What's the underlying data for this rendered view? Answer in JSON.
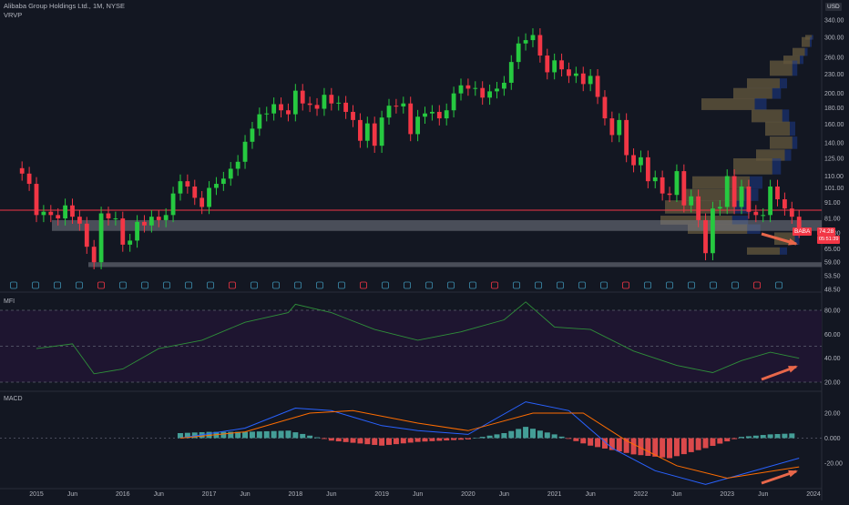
{
  "header": {
    "symbol_line": "Alibaba Group Holdings Ltd., 1M, NYSE",
    "indicator": "VRVP"
  },
  "currency": "USD",
  "ticker_tag": {
    "symbol": "BABA",
    "price": "74.28",
    "countdown": "05:51:39"
  },
  "price_axis": [
    "340.00",
    "300.00",
    "260.00",
    "230.00",
    "200.00",
    "180.00",
    "160.00",
    "140.00",
    "125.00",
    "110.00",
    "101.00",
    "91.00",
    "81.00",
    "73.00",
    "65.00",
    "59.00",
    "53.50",
    "48.50"
  ],
  "mfi_axis": [
    "80.00",
    "60.00",
    "40.00",
    "20.00"
  ],
  "macd_axis": [
    "20.00",
    "0.000",
    "-20.00"
  ],
  "time_axis": [
    "2015",
    "Jun",
    "2016",
    "Jun",
    "2017",
    "Jun",
    "2018",
    "Jun",
    "2019",
    "Jun",
    "2020",
    "Jun",
    "2021",
    "Jun",
    "2022",
    "Jun",
    "2023",
    "Jun",
    "2024"
  ],
  "pane_labels": {
    "mfi": "MFI",
    "macd": "MACD"
  },
  "colors": {
    "up": "#26c940",
    "down": "#f23645",
    "bg": "#131722",
    "grid": "#1e222d",
    "mfi_line": "#2f8f3a",
    "macd_line": "#2962ff",
    "signal_line": "#ff6d00",
    "hist_up": "#4db6ac",
    "hist_down": "#ff5252",
    "arrow": "#e8674a"
  },
  "chart_data": {
    "type": "candlestick",
    "title": "Alibaba Group Holdings Ltd., 1M, NYSE",
    "interval": "1M",
    "price_scale": "log",
    "approximate": true,
    "price_series": [
      [
        "2014-11",
        112
      ],
      [
        "2014-12",
        104
      ],
      [
        "2015-01",
        83
      ],
      [
        "2015-02",
        85
      ],
      [
        "2015-03",
        83
      ],
      [
        "2015-04",
        81
      ],
      [
        "2015-05",
        89
      ],
      [
        "2015-06",
        82
      ],
      [
        "2015-07",
        78
      ],
      [
        "2015-08",
        66
      ],
      [
        "2015-09",
        59
      ],
      [
        "2015-10",
        84
      ],
      [
        "2015-11",
        81
      ],
      [
        "2015-12",
        81
      ],
      [
        "2016-01",
        67
      ],
      [
        "2016-02",
        69
      ],
      [
        "2016-03",
        79
      ],
      [
        "2016-04",
        77
      ],
      [
        "2016-05",
        82
      ],
      [
        "2016-06",
        80
      ],
      [
        "2016-07",
        83
      ],
      [
        "2016-08",
        97
      ],
      [
        "2016-09",
        106
      ],
      [
        "2016-10",
        102
      ],
      [
        "2016-11",
        94
      ],
      [
        "2016-12",
        88
      ],
      [
        "2017-01",
        101
      ],
      [
        "2017-02",
        104
      ],
      [
        "2017-03",
        108
      ],
      [
        "2017-04",
        116
      ],
      [
        "2017-05",
        122
      ],
      [
        "2017-06",
        141
      ],
      [
        "2017-07",
        155
      ],
      [
        "2017-08",
        172
      ],
      [
        "2017-09",
        173
      ],
      [
        "2017-10",
        185
      ],
      [
        "2017-11",
        177
      ],
      [
        "2017-12",
        172
      ],
      [
        "2018-01",
        204
      ],
      [
        "2018-02",
        186
      ],
      [
        "2018-03",
        184
      ],
      [
        "2018-04",
        179
      ],
      [
        "2018-05",
        198
      ],
      [
        "2018-06",
        186
      ],
      [
        "2018-07",
        187
      ],
      [
        "2018-08",
        175
      ],
      [
        "2018-09",
        165
      ],
      [
        "2018-10",
        142
      ],
      [
        "2018-11",
        161
      ],
      [
        "2018-12",
        137
      ],
      [
        "2019-01",
        168
      ],
      [
        "2019-02",
        183
      ],
      [
        "2019-03",
        182
      ],
      [
        "2019-04",
        186
      ],
      [
        "2019-05",
        149
      ],
      [
        "2019-06",
        169
      ],
      [
        "2019-07",
        173
      ],
      [
        "2019-08",
        175
      ],
      [
        "2019-09",
        167
      ],
      [
        "2019-10",
        177
      ],
      [
        "2019-11",
        200
      ],
      [
        "2019-12",
        212
      ],
      [
        "2020-01",
        207
      ],
      [
        "2020-02",
        208
      ],
      [
        "2020-03",
        194
      ],
      [
        "2020-04",
        203
      ],
      [
        "2020-05",
        207
      ],
      [
        "2020-06",
        216
      ],
      [
        "2020-07",
        251
      ],
      [
        "2020-08",
        287
      ],
      [
        "2020-09",
        294
      ],
      [
        "2020-10",
        305
      ],
      [
        "2020-11",
        263
      ],
      [
        "2020-12",
        233
      ],
      [
        "2021-01",
        254
      ],
      [
        "2021-02",
        238
      ],
      [
        "2021-03",
        227
      ],
      [
        "2021-04",
        231
      ],
      [
        "2021-05",
        214
      ],
      [
        "2021-06",
        227
      ],
      [
        "2021-07",
        195
      ],
      [
        "2021-08",
        167
      ],
      [
        "2021-09",
        148
      ],
      [
        "2021-10",
        165
      ],
      [
        "2021-11",
        128
      ],
      [
        "2021-12",
        119
      ],
      [
        "2022-01",
        126
      ],
      [
        "2022-02",
        106
      ],
      [
        "2022-03",
        109
      ],
      [
        "2022-04",
        97
      ],
      [
        "2022-05",
        96
      ],
      [
        "2022-06",
        114
      ],
      [
        "2022-07",
        89
      ],
      [
        "2022-08",
        95
      ],
      [
        "2022-09",
        80
      ],
      [
        "2022-10",
        63
      ],
      [
        "2022-11",
        87
      ],
      [
        "2022-12",
        88
      ],
      [
        "2023-01",
        110
      ],
      [
        "2023-02",
        88
      ],
      [
        "2023-03",
        102
      ],
      [
        "2023-04",
        85
      ],
      [
        "2023-05",
        83
      ],
      [
        "2023-06",
        83
      ],
      [
        "2023-07",
        102
      ],
      [
        "2023-08",
        93
      ],
      [
        "2023-09",
        87
      ],
      [
        "2023-10",
        82
      ],
      [
        "2023-11",
        74
      ]
    ],
    "horizontal_lines": [
      {
        "name": "resistance",
        "price": 86,
        "color": "#f23645"
      },
      {
        "name": "support-zone-upper",
        "from": 74,
        "to": 80,
        "color": "#787b86"
      },
      {
        "name": "support-zone-lower",
        "from": 57,
        "to": 59,
        "color": "#787b86"
      }
    ],
    "last_price": 74.28,
    "mfi_series": [
      [
        "2015-01",
        48
      ],
      [
        "2015-06",
        52
      ],
      [
        "2015-09",
        27
      ],
      [
        "2016-01",
        31
      ],
      [
        "2016-06",
        48
      ],
      [
        "2016-12",
        55
      ],
      [
        "2017-06",
        70
      ],
      [
        "2017-12",
        78
      ],
      [
        "2018-01",
        85
      ],
      [
        "2018-06",
        78
      ],
      [
        "2018-12",
        64
      ],
      [
        "2019-06",
        55
      ],
      [
        "2019-12",
        62
      ],
      [
        "2020-06",
        72
      ],
      [
        "2020-09",
        87
      ],
      [
        "2021-01",
        66
      ],
      [
        "2021-06",
        64
      ],
      [
        "2021-12",
        46
      ],
      [
        "2022-06",
        34
      ],
      [
        "2022-11",
        28
      ],
      [
        "2023-03",
        38
      ],
      [
        "2023-07",
        45
      ],
      [
        "2023-11",
        40
      ]
    ],
    "macd_series": [
      [
        "2016-09",
        0
      ],
      [
        "2017-06",
        8
      ],
      [
        "2018-01",
        24
      ],
      [
        "2018-06",
        22
      ],
      [
        "2019-01",
        10
      ],
      [
        "2019-06",
        6
      ],
      [
        "2020-01",
        3
      ],
      [
        "2020-09",
        29
      ],
      [
        "2021-03",
        22
      ],
      [
        "2021-09",
        -8
      ],
      [
        "2022-03",
        -26
      ],
      [
        "2022-10",
        -37
      ],
      [
        "2023-03",
        -29
      ],
      [
        "2023-11",
        -16
      ]
    ],
    "signal_series": [
      [
        "2016-09",
        0
      ],
      [
        "2017-06",
        5
      ],
      [
        "2018-03",
        20
      ],
      [
        "2018-09",
        22
      ],
      [
        "2019-06",
        12
      ],
      [
        "2020-01",
        6
      ],
      [
        "2020-10",
        20
      ],
      [
        "2021-05",
        20
      ],
      [
        "2021-11",
        -2
      ],
      [
        "2022-06",
        -22
      ],
      [
        "2023-01",
        -32
      ],
      [
        "2023-11",
        -23
      ]
    ],
    "histogram": [
      [
        "2016-09",
        4
      ],
      [
        "2017-01",
        5
      ],
      [
        "2017-06",
        5
      ],
      [
        "2017-12",
        6
      ],
      [
        "2018-06",
        -2
      ],
      [
        "2019-01",
        -6
      ],
      [
        "2019-06",
        -3
      ],
      [
        "2020-01",
        -1
      ],
      [
        "2020-06",
        4
      ],
      [
        "2020-09",
        9
      ],
      [
        "2021-01",
        3
      ],
      [
        "2021-06",
        -6
      ],
      [
        "2021-12",
        -13
      ],
      [
        "2022-05",
        -16
      ],
      [
        "2022-10",
        -8
      ],
      [
        "2023-03",
        1
      ],
      [
        "2023-07",
        3
      ],
      [
        "2023-11",
        4
      ]
    ]
  }
}
